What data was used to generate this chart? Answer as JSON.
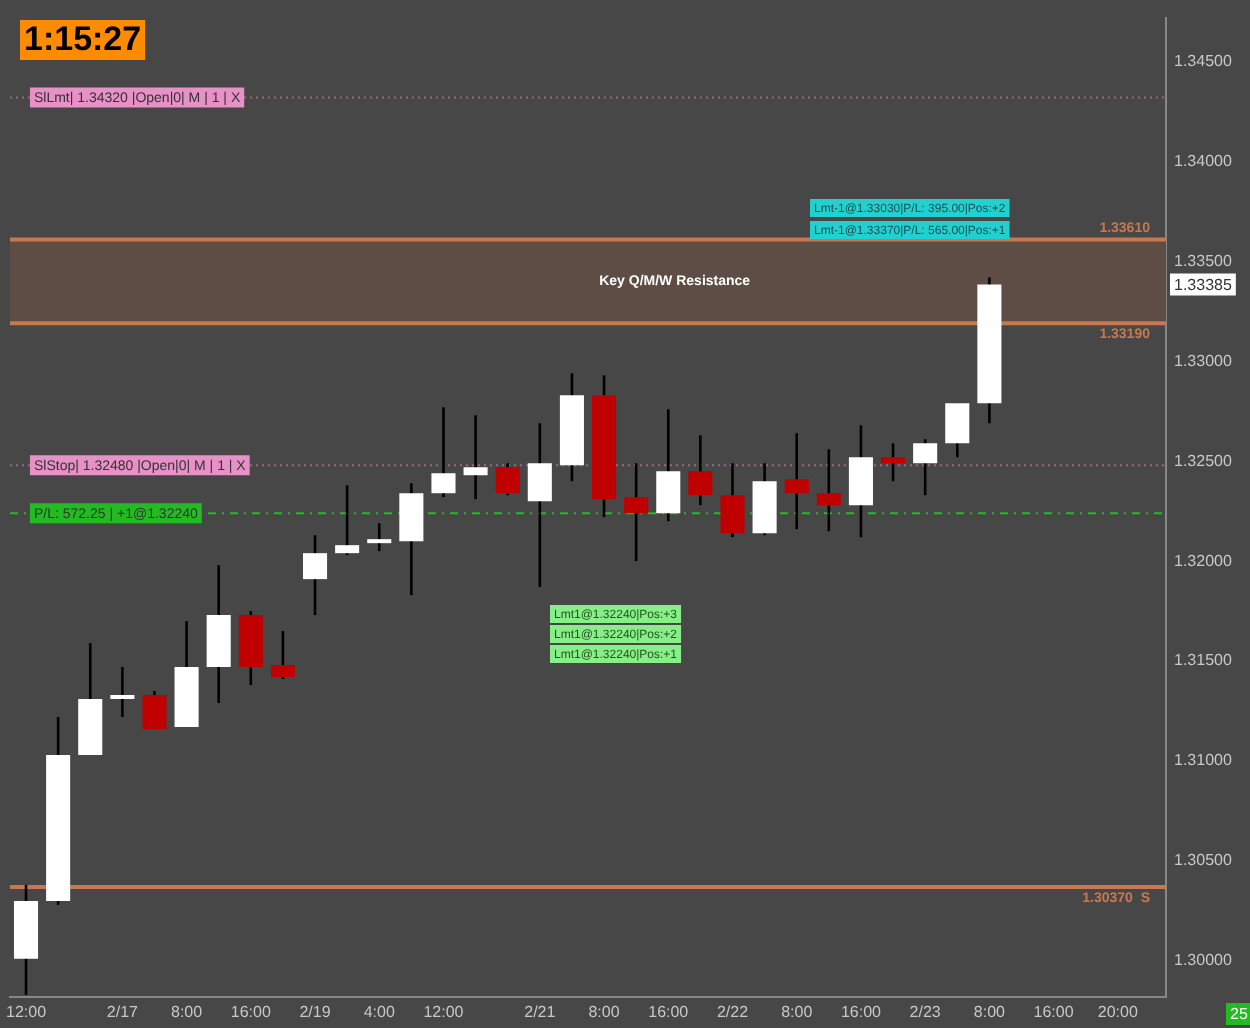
{
  "chart_data": {
    "type": "candlestick",
    "categories": [
      "12:00",
      null,
      null,
      "2/17",
      null,
      "8:00",
      null,
      "16:00",
      null,
      "2/19",
      null,
      "4:00",
      null,
      "12:00",
      null,
      null,
      "2/21",
      null,
      "8:00",
      null,
      "16:00",
      null,
      "2/22",
      null,
      "8:00",
      null,
      "16:00",
      null,
      "2/23",
      null,
      "8:00",
      null,
      "16:00",
      null,
      "20:00",
      null
    ],
    "ohlc": [
      [
        1.3001,
        1.3038,
        1.2983,
        1.303
      ],
      [
        1.303,
        1.3122,
        1.3028,
        1.3103
      ],
      [
        1.3103,
        1.3159,
        1.3103,
        1.3131
      ],
      [
        1.3131,
        1.3147,
        1.3122,
        1.3133
      ],
      [
        1.3133,
        1.3135,
        1.3116,
        1.3116
      ],
      [
        1.3117,
        1.317,
        1.3117,
        1.3147
      ],
      [
        1.3147,
        1.3198,
        1.3129,
        1.3173
      ],
      [
        1.3173,
        1.3175,
        1.3138,
        1.3147
      ],
      [
        1.3148,
        1.3165,
        1.3141,
        1.3142
      ],
      [
        1.3191,
        1.3213,
        1.3173,
        1.3204
      ],
      [
        1.3204,
        1.3238,
        1.3203,
        1.3208
      ],
      [
        1.3209,
        1.3219,
        1.3205,
        1.321
      ],
      [
        1.321,
        1.3239,
        1.3183,
        1.3234
      ],
      [
        1.3234,
        1.3277,
        1.3232,
        1.3244
      ],
      [
        1.3243,
        1.3273,
        1.3231,
        1.3247
      ],
      [
        1.3247,
        1.3249,
        1.3233,
        1.3234
      ],
      [
        1.323,
        1.3269,
        1.3187,
        1.3249
      ],
      [
        1.3248,
        1.3294,
        1.324,
        1.3283
      ],
      [
        1.3283,
        1.3293,
        1.3222,
        1.3231
      ],
      [
        1.3232,
        1.3249,
        1.32,
        1.3224
      ],
      [
        1.3224,
        1.3276,
        1.322,
        1.3245
      ],
      [
        1.3245,
        1.3263,
        1.3228,
        1.3233
      ],
      [
        1.3233,
        1.3249,
        1.3212,
        1.3214
      ],
      [
        1.3214,
        1.3249,
        1.3213,
        1.324
      ],
      [
        1.3241,
        1.3264,
        1.3216,
        1.3234
      ],
      [
        1.3234,
        1.3256,
        1.3215,
        1.3228
      ],
      [
        1.3228,
        1.3268,
        1.3212,
        1.3252
      ],
      [
        1.3252,
        1.3259,
        1.324,
        1.3249
      ],
      [
        1.3249,
        1.3261,
        1.3233,
        1.3259
      ],
      [
        1.3259,
        1.3279,
        1.3252,
        1.3279
      ],
      [
        1.3279,
        1.3342,
        1.3269,
        1.33385
      ],
      null,
      null,
      null,
      null,
      null
    ],
    "colors": [
      "#ffffff",
      "#ffffff",
      "#ffffff",
      "#ffffff",
      "#c00000",
      "#ffffff",
      "#ffffff",
      "#c00000",
      "#c00000",
      "#ffffff",
      "#ffffff",
      "#ffffff",
      "#ffffff",
      "#ffffff",
      "#ffffff",
      "#c00000",
      "#ffffff",
      "#ffffff",
      "#c00000",
      "#c00000",
      "#ffffff",
      "#c00000",
      "#c00000",
      "#ffffff",
      "#c00000",
      "#c00000",
      "#ffffff",
      "#c00000",
      "#ffffff",
      "#ffffff",
      "#ffffff",
      null,
      null,
      null,
      null,
      null
    ],
    "ylim": [
      1.2982,
      1.3472
    ],
    "yticks": [
      {
        "value": 1.3,
        "label": "1.30000"
      },
      {
        "value": 1.305,
        "label": "1.30500"
      },
      {
        "value": 1.31,
        "label": "1.31000"
      },
      {
        "value": 1.315,
        "label": "1.31500"
      },
      {
        "value": 1.32,
        "label": "1.32000"
      },
      {
        "value": 1.325,
        "label": "1.32500"
      },
      {
        "value": 1.33,
        "label": "1.33000"
      },
      {
        "value": 1.335,
        "label": "1.33500"
      },
      {
        "value": 1.34,
        "label": "1.34000"
      },
      {
        "value": 1.345,
        "label": "1.34500"
      }
    ],
    "grid": false,
    "legend": false,
    "bands": [
      {
        "axis": "y",
        "from": 1.3319,
        "to": 1.3361,
        "label": "Key Q/M/W Resistance",
        "color": "#5e4d45"
      }
    ],
    "ref_lines": [
      {
        "axis": "y",
        "value": 1.3432,
        "label": "SlLmt| 1.34320 |Open|0| M | 1 | X",
        "color": "#e890c8",
        "line_style": "dotted"
      },
      {
        "axis": "y",
        "value": 1.3248,
        "label": "SlStop| 1.32480 |Open|0| M | 1 | X",
        "color": "#e890c8",
        "line_style": "dotted"
      },
      {
        "axis": "y",
        "value": 1.3224,
        "label": "P/L: 572.25 | +1@1.32240",
        "color": "#22bb22",
        "line_style": "dashed"
      },
      {
        "axis": "y",
        "value": 1.3361,
        "label": "1.33610",
        "color": "#c87850",
        "line_style": "solid"
      },
      {
        "axis": "y",
        "value": 1.3319,
        "label": "1.33190",
        "color": "#c87850",
        "line_style": "solid"
      },
      {
        "axis": "y",
        "value": 1.3037,
        "label": "1.30370  S",
        "color": "#c87850",
        "line_style": "solid"
      }
    ],
    "annotations": [
      "1:15:27",
      "Lmt-1@1.33030|P/L: 395.00|Pos:+2",
      "Lmt-1@1.33370|P/L: 565.00|Pos:+1",
      "Lmt1@1.32240|Pos:+3",
      "Lmt1@1.32240|Pos:+2",
      "Lmt1@1.32240|Pos:+1",
      {
        "text": "1.33385",
        "y": 1.33385
      },
      "25"
    ]
  }
}
